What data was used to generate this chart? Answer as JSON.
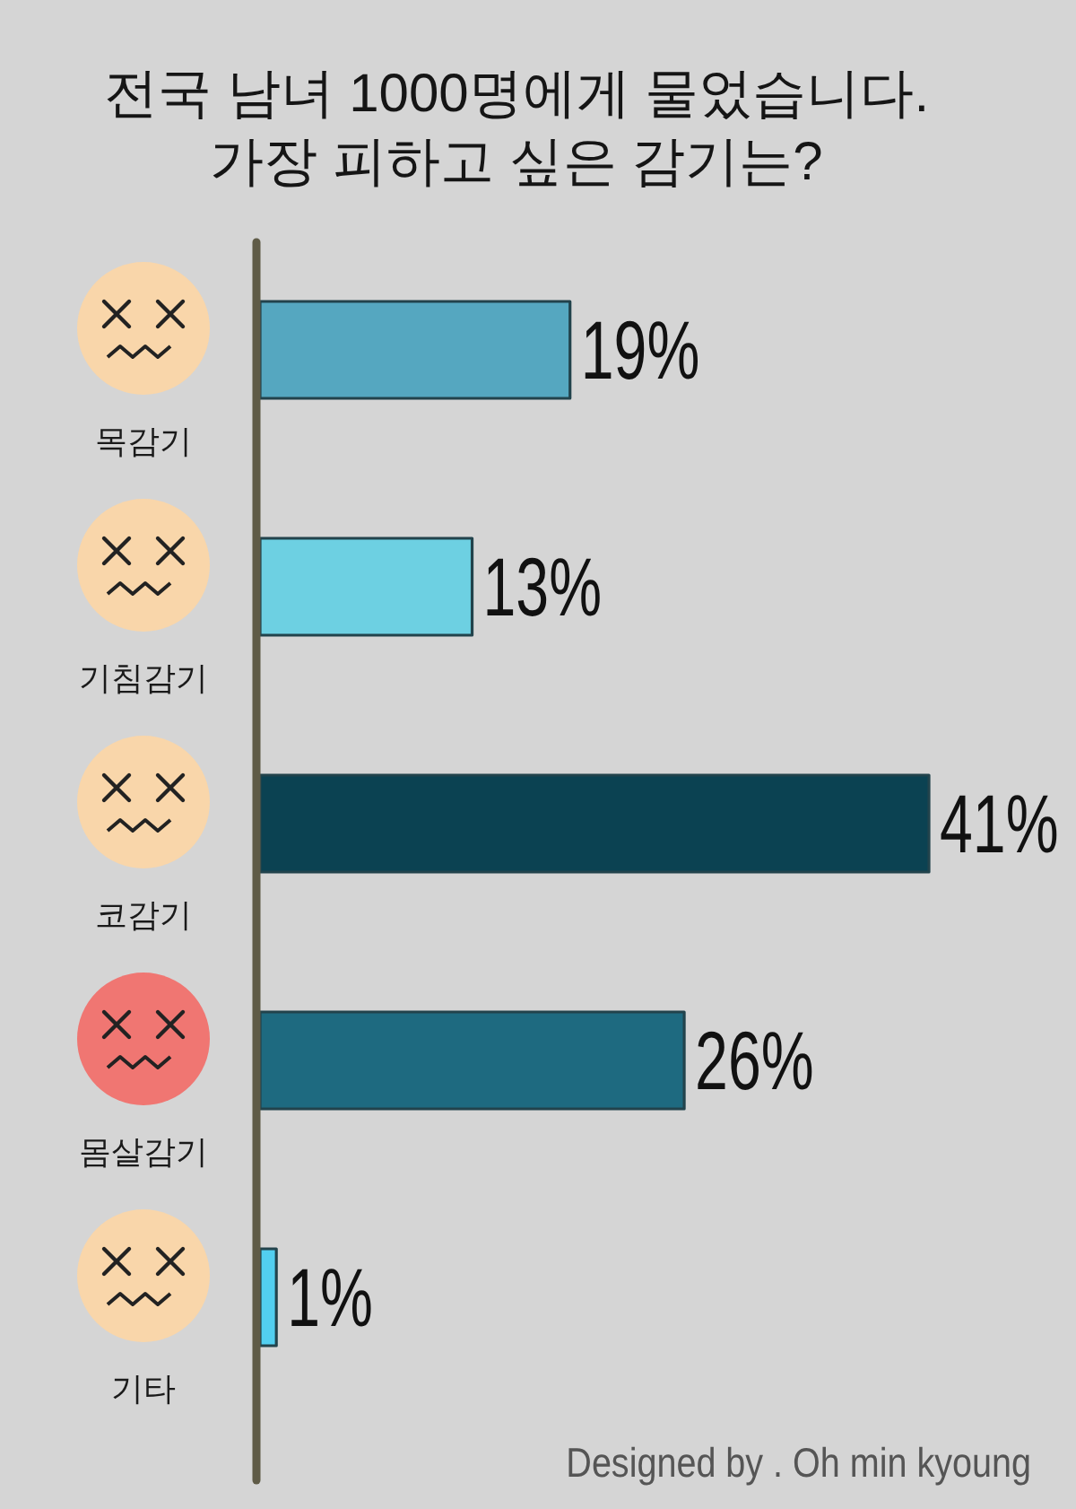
{
  "chart_data": {
    "type": "bar",
    "orientation": "horizontal",
    "title": "전국 남녀 1000명에게 물었습니다.\n가장 피하고 싶은 감기는?",
    "categories": [
      "목감기",
      "기침감기",
      "코감기",
      "몸살감기",
      "기타"
    ],
    "values": [
      19,
      13,
      41,
      26,
      1
    ],
    "value_labels": [
      "19%",
      "13%",
      "41%",
      "26%",
      "1%"
    ],
    "colors": [
      "#55a7c0",
      "#6dd0e2",
      "#0b4252",
      "#1e6a80",
      "#52cff0"
    ],
    "tick_labels": "y",
    "annotations": [
      "Designed by . Oh min kyoung"
    ]
  }
}
